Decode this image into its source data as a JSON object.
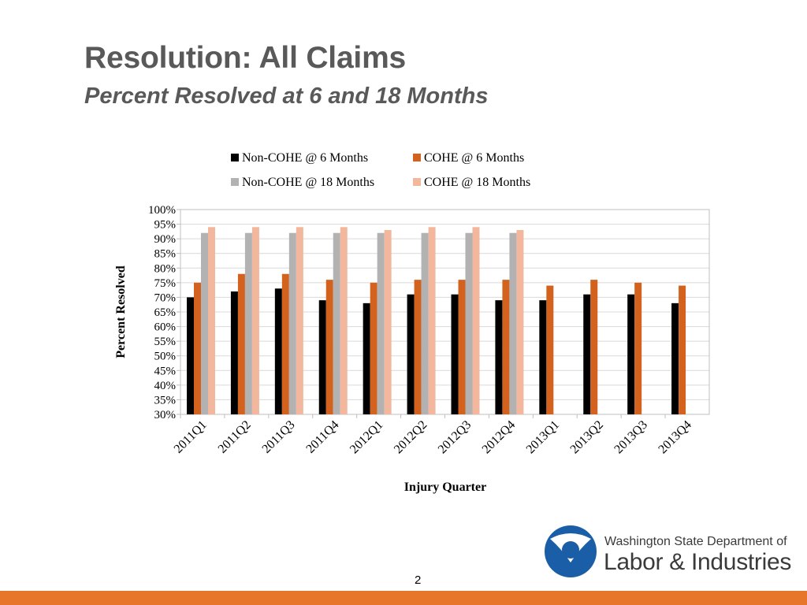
{
  "slide": {
    "title": "Resolution: All Claims",
    "subtitle": "Percent Resolved at 6 and 18 Months",
    "page_number": "2"
  },
  "logo": {
    "line1": "Washington State Department of",
    "line2": "Labor & Industries",
    "color": "#1a5ea8"
  },
  "colors": {
    "bottom_bar": "#e8762a",
    "text": "#595959"
  },
  "chart_data": {
    "type": "bar",
    "title": "",
    "xlabel": "Injury Quarter",
    "ylabel": "Percent Resolved",
    "ylim": [
      30,
      100
    ],
    "y_ticks": [
      30,
      35,
      40,
      45,
      50,
      55,
      60,
      65,
      70,
      75,
      80,
      85,
      90,
      95,
      100
    ],
    "y_tick_labels": [
      "30%",
      "35%",
      "40%",
      "45%",
      "50%",
      "55%",
      "60%",
      "65%",
      "70%",
      "75%",
      "80%",
      "85%",
      "90%",
      "95%",
      "100%"
    ],
    "grid": true,
    "legend_position": "top",
    "categories": [
      "2011Q1",
      "2011Q2",
      "2011Q3",
      "2011Q4",
      "2012Q1",
      "2012Q2",
      "2012Q3",
      "2012Q4",
      "2013Q1",
      "2013Q2",
      "2013Q3",
      "2013Q4"
    ],
    "series": [
      {
        "name": "Non-COHE @ 6 Months",
        "color": "#000000",
        "values": [
          70,
          72,
          73,
          69,
          68,
          71,
          71,
          69,
          69,
          71,
          71,
          68
        ]
      },
      {
        "name": "COHE @ 6 Months",
        "color": "#d4621f",
        "values": [
          75,
          78,
          78,
          76,
          75,
          76,
          76,
          76,
          74,
          76,
          75,
          74
        ]
      },
      {
        "name": "Non-COHE @ 18 Months",
        "color": "#b2b2b2",
        "values": [
          92,
          92,
          92,
          92,
          92,
          92,
          92,
          92,
          null,
          null,
          null,
          null
        ]
      },
      {
        "name": "COHE @ 18 Months",
        "color": "#f2b79c",
        "values": [
          94,
          94,
          94,
          94,
          93,
          94,
          94,
          93,
          null,
          null,
          null,
          null
        ]
      }
    ]
  }
}
